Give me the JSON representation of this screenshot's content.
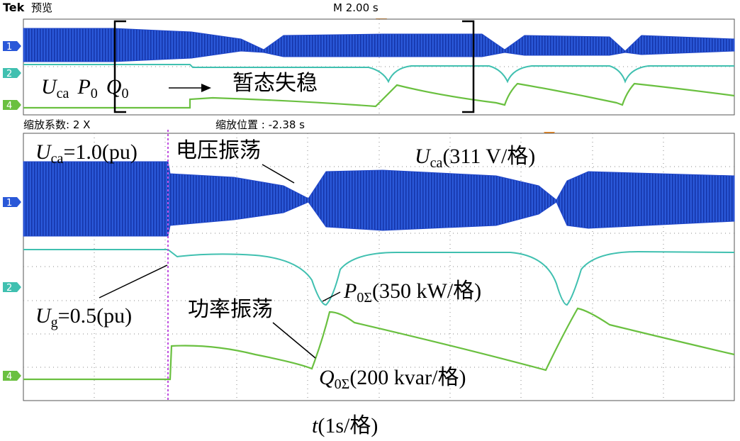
{
  "header": {
    "brand": "Tek",
    "mode": "预览",
    "timebase": "M 2.00 s"
  },
  "overview": {
    "channels": [
      "1",
      "2",
      "4"
    ],
    "signals": [
      {
        "var": "U",
        "sub": "ca"
      },
      {
        "var": "P",
        "sub": "0"
      },
      {
        "var": "Q",
        "sub": "0"
      }
    ],
    "note": "暂态失稳"
  },
  "zoom": {
    "factor": "缩放系数: 2 X",
    "position": "缩放位置 : -2.38 s"
  },
  "detail": {
    "channels": [
      "1",
      "2",
      "4"
    ],
    "labels": [
      {
        "var": "U",
        "sub": "ca",
        "text": "=1.0(pu)"
      },
      {
        "var": "U",
        "sub": "ca",
        "text": "(311 V/格)"
      },
      {
        "var": "P",
        "sub": "0Σ",
        "text": "(350 kW/格)"
      },
      {
        "var": "Q",
        "sub": "0Σ",
        "text": "(200 kvar/格)"
      },
      {
        "var": "U",
        "sub": "g",
        "text": "=0.5(pu)"
      }
    ],
    "notes": [
      "电压振荡",
      "功率振荡"
    ]
  },
  "x_label": {
    "var": "t",
    "text": "(1s/格)"
  }
}
